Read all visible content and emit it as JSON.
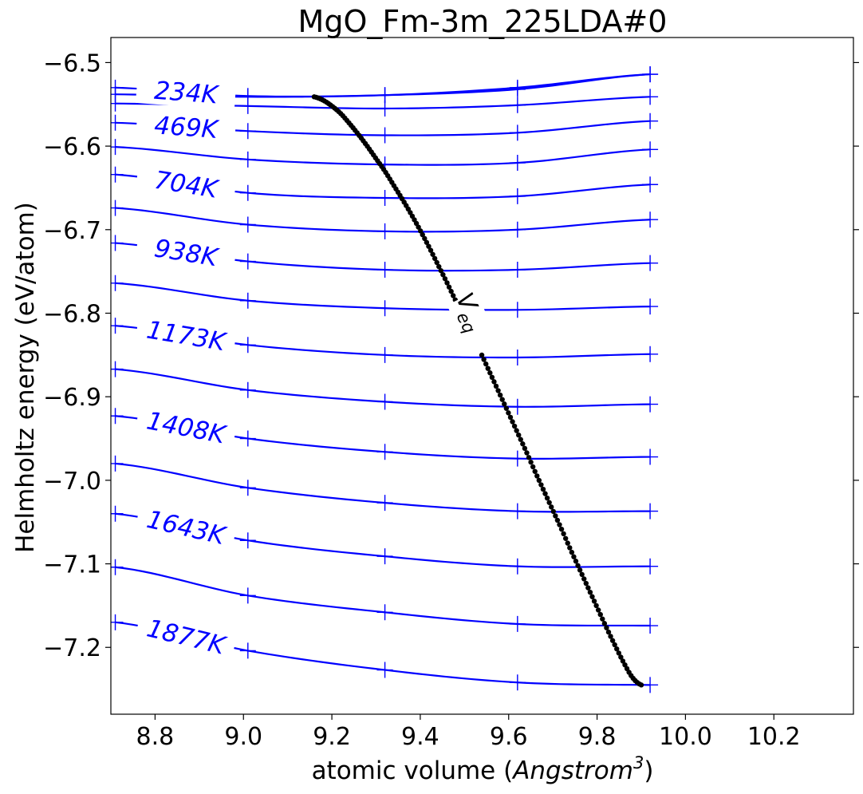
{
  "chart_data": {
    "type": "line",
    "title": "MgO_Fm-3m_225LDA#0",
    "xlabel_prefix": "atomic volume (",
    "xlabel_italic": "Angstrom",
    "xlabel_sup": "3",
    "xlabel_suffix": ")",
    "ylabel": "Helmholtz energy (eV/atom)",
    "xlim": [
      8.7,
      10.38
    ],
    "ylim": [
      -7.28,
      -6.47
    ],
    "xticks": [
      8.8,
      9.0,
      9.2,
      9.4,
      9.6,
      9.8,
      10.0,
      10.2
    ],
    "xtick_labels": [
      "8.8",
      "9.0",
      "9.2",
      "9.4",
      "9.6",
      "9.8",
      "10.0",
      "10.2"
    ],
    "yticks": [
      -6.5,
      -6.6,
      -6.7,
      -6.8,
      -6.9,
      -7.0,
      -7.1,
      -7.2
    ],
    "ytick_labels": [
      "−6.5",
      "−6.6",
      "−6.7",
      "−6.8",
      "−6.9",
      "−7.0",
      "−7.1",
      "−7.2"
    ],
    "line_color": "#0000ff",
    "point_color": "#000000",
    "marker_x": [
      8.71,
      9.01,
      9.32,
      9.62,
      9.92
    ],
    "series": [
      {
        "name": "234K",
        "values": [
          -6.53,
          -6.54,
          -6.539,
          -6.532,
          -6.514
        ]
      },
      {
        "values": [
          -6.538,
          -6.541,
          -6.539,
          -6.53,
          -6.514
        ]
      },
      {
        "values": [
          -6.549,
          -6.552,
          -6.555,
          -6.551,
          -6.541
        ]
      },
      {
        "name": "469K",
        "values": [
          -6.572,
          -6.582,
          -6.587,
          -6.584,
          -6.57
        ]
      },
      {
        "values": [
          -6.601,
          -6.616,
          -6.622,
          -6.62,
          -6.604
        ]
      },
      {
        "name": "704K",
        "values": [
          -6.634,
          -6.656,
          -6.662,
          -6.66,
          -6.646
        ]
      },
      {
        "values": [
          -6.674,
          -6.694,
          -6.702,
          -6.7,
          -6.688
        ]
      },
      {
        "name": "938K",
        "values": [
          -6.716,
          -6.738,
          -6.748,
          -6.748,
          -6.74
        ]
      },
      {
        "values": [
          -6.764,
          -6.785,
          -6.794,
          -6.796,
          -6.792
        ]
      },
      {
        "name": "1173K",
        "values": [
          -6.815,
          -6.838,
          -6.85,
          -6.853,
          -6.849
        ]
      },
      {
        "values": [
          -6.867,
          -6.892,
          -6.906,
          -6.912,
          -6.909
        ]
      },
      {
        "name": "1408K",
        "values": [
          -6.923,
          -6.95,
          -6.966,
          -6.974,
          -6.972
        ]
      },
      {
        "values": [
          -6.98,
          -7.009,
          -7.027,
          -7.037,
          -7.037
        ]
      },
      {
        "name": "1643K",
        "values": [
          -7.04,
          -7.072,
          -7.091,
          -7.103,
          -7.103
        ]
      },
      {
        "values": [
          -7.104,
          -7.138,
          -7.158,
          -7.172,
          -7.174
        ]
      },
      {
        "name": "1877K",
        "values": [
          -7.17,
          -7.204,
          -7.227,
          -7.242,
          -7.245
        ]
      }
    ],
    "veq_label": "V",
    "veq_sub": "eq",
    "veq": {
      "x": [
        9.16,
        9.18,
        9.2,
        9.22,
        9.24,
        9.26,
        9.28,
        9.3,
        9.32,
        9.34,
        9.36,
        9.38,
        9.4,
        9.42,
        9.44,
        9.46,
        9.48,
        9.5,
        9.52,
        9.54,
        9.56,
        9.58,
        9.6,
        9.62,
        9.64,
        9.66,
        9.68,
        9.7,
        9.72,
        9.74,
        9.76,
        9.78,
        9.8,
        9.82,
        9.84,
        9.86,
        9.88,
        9.9
      ],
      "y": [
        -6.541,
        -6.545,
        -6.552,
        -6.561,
        -6.573,
        -6.586,
        -6.6,
        -6.615,
        -6.63,
        -6.647,
        -6.664,
        -6.682,
        -6.701,
        -6.721,
        -6.742,
        -6.763,
        -6.785,
        -6.806,
        -6.828,
        -6.851,
        -6.874,
        -6.897,
        -6.92,
        -6.943,
        -6.966,
        -6.99,
        -7.013,
        -7.036,
        -7.059,
        -7.083,
        -7.106,
        -7.129,
        -7.152,
        -7.175,
        -7.197,
        -7.218,
        -7.236,
        -7.245
      ]
    }
  }
}
